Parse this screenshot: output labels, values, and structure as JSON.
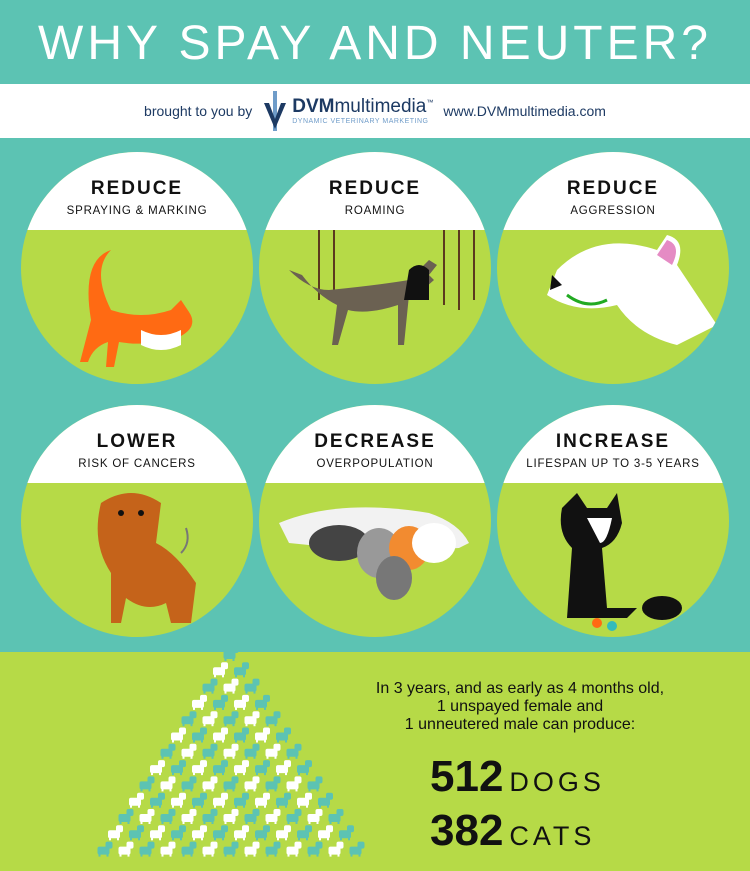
{
  "title": "WHY SPAY AND NEUTER?",
  "sponsor": {
    "prefix": "brought to you by",
    "brand_bold": "DVM",
    "brand_light": "multimedia",
    "tm": "™",
    "tagline": "DYNAMIC VETERINARY MARKETING",
    "url": "www.DVMmultimedia.com"
  },
  "benefits": [
    {
      "heading": "REDUCE",
      "sub": "SPRAYING & MARKING",
      "icon": "cat-icon"
    },
    {
      "heading": "REDUCE",
      "sub": "ROAMING",
      "icon": "roaming-dog-icon"
    },
    {
      "heading": "REDUCE",
      "sub": "AGGRESSION",
      "icon": "growling-dog-icon"
    },
    {
      "heading": "LOWER",
      "sub": "RISK OF CANCERS",
      "icon": "dog-icon"
    },
    {
      "heading": "DECREASE",
      "sub": "OVERPOPULATION",
      "icon": "cat-litter-icon"
    },
    {
      "heading": "INCREASE",
      "sub": "LIFESPAN UP TO 3-5 YEARS",
      "icon": "dog-and-cat-icon"
    }
  ],
  "stats": {
    "line1": "In 3 years, and as early as 4 months old,",
    "line2": "1 unspayed female and",
    "line3": "1 unneutered male can produce:",
    "dogs_num": "512",
    "dogs_label": "DOGS",
    "cats_num": "382",
    "cats_label": "CATS"
  },
  "colors": {
    "teal": "#5cc3b3",
    "green": "#b6da47",
    "navy": "#1d3a63",
    "orange": "#ff6a13"
  }
}
